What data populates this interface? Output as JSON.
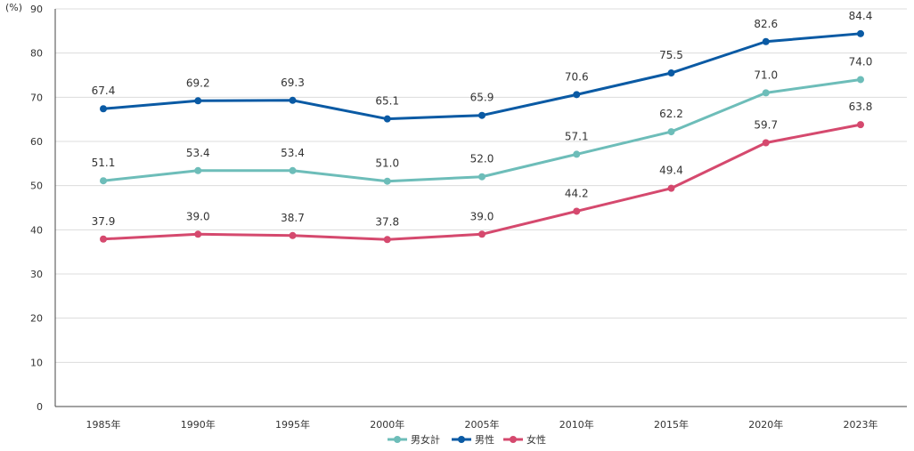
{
  "chart_data": {
    "type": "line",
    "title": "",
    "xlabel": "",
    "ylabel": "",
    "y_unit": "(%)",
    "ylim": [
      0,
      90
    ],
    "y_ticks": [
      0,
      10,
      20,
      30,
      40,
      50,
      60,
      70,
      80,
      90
    ],
    "y_tick_labels": [
      "0",
      "10",
      "20",
      "30",
      "40",
      "50",
      "60",
      "70",
      "80",
      "90"
    ],
    "grid": "horizontal",
    "legend_position": "bottom",
    "categories": [
      "1985年",
      "1990年",
      "1995年",
      "2000年",
      "2005年",
      "2010年",
      "2015年",
      "2020年",
      "2023年"
    ],
    "series": [
      {
        "name": "男女計",
        "color": "#6dbdb9",
        "values": [
          51.1,
          53.4,
          53.4,
          51.0,
          52.0,
          57.1,
          62.2,
          71.0,
          74.0
        ],
        "labels": [
          "51.1",
          "53.4",
          "53.4",
          "51.0",
          "52.0",
          "57.1",
          "62.2",
          "71.0",
          "74.0"
        ]
      },
      {
        "name": "男性",
        "color": "#0a5aa4",
        "values": [
          67.4,
          69.2,
          69.3,
          65.1,
          65.9,
          70.6,
          75.5,
          82.6,
          84.4
        ],
        "labels": [
          "67.4",
          "69.2",
          "69.3",
          "65.1",
          "65.9",
          "70.6",
          "75.5",
          "82.6",
          "84.4"
        ]
      },
      {
        "name": "女性",
        "color": "#d5496e",
        "values": [
          37.9,
          39.0,
          38.7,
          37.8,
          39.0,
          44.2,
          49.4,
          59.7,
          63.8
        ],
        "labels": [
          "37.9",
          "39.0",
          "38.7",
          "37.8",
          "39.0",
          "44.2",
          "49.4",
          "59.7",
          "63.8"
        ]
      }
    ]
  }
}
